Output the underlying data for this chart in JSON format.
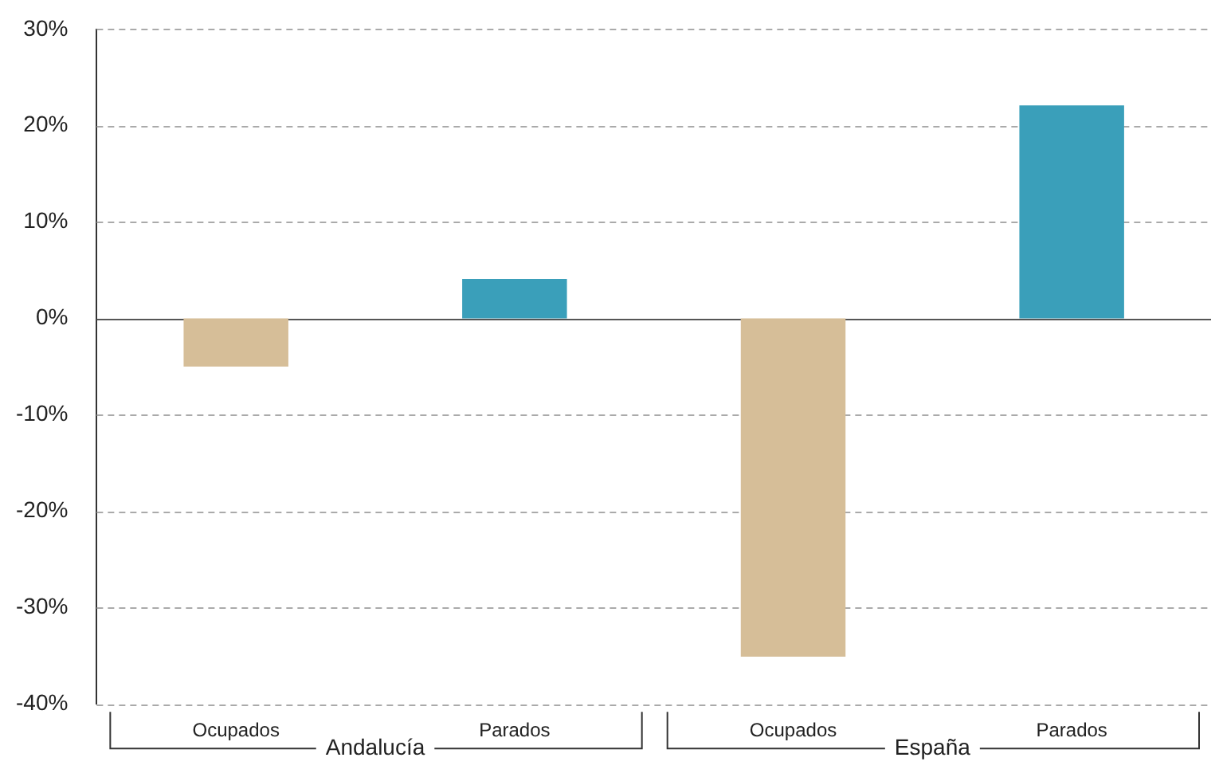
{
  "chart_data": {
    "type": "bar",
    "categories": [
      "Ocupados",
      "Parados",
      "Ocupados",
      "Parados"
    ],
    "values": [
      -5,
      4.1,
      -35.1,
      22.1
    ],
    "colors": [
      "#d6be98",
      "#3a9fba",
      "#d6be98",
      "#3a9fba"
    ],
    "ylim": [
      -40,
      30
    ],
    "yticks": [
      {
        "value": -40,
        "label": "-40%"
      },
      {
        "value": -30,
        "label": "-30%"
      },
      {
        "value": -20,
        "label": "-20%"
      },
      {
        "value": -10,
        "label": "-10%"
      },
      {
        "value": 0,
        "label": "0%"
      },
      {
        "value": 10,
        "label": "10%"
      },
      {
        "value": 20,
        "label": "20%"
      },
      {
        "value": 30,
        "label": "30%"
      }
    ],
    "annotations": [
      "Andalucía",
      "España"
    ],
    "grid": "y",
    "legend": false
  }
}
